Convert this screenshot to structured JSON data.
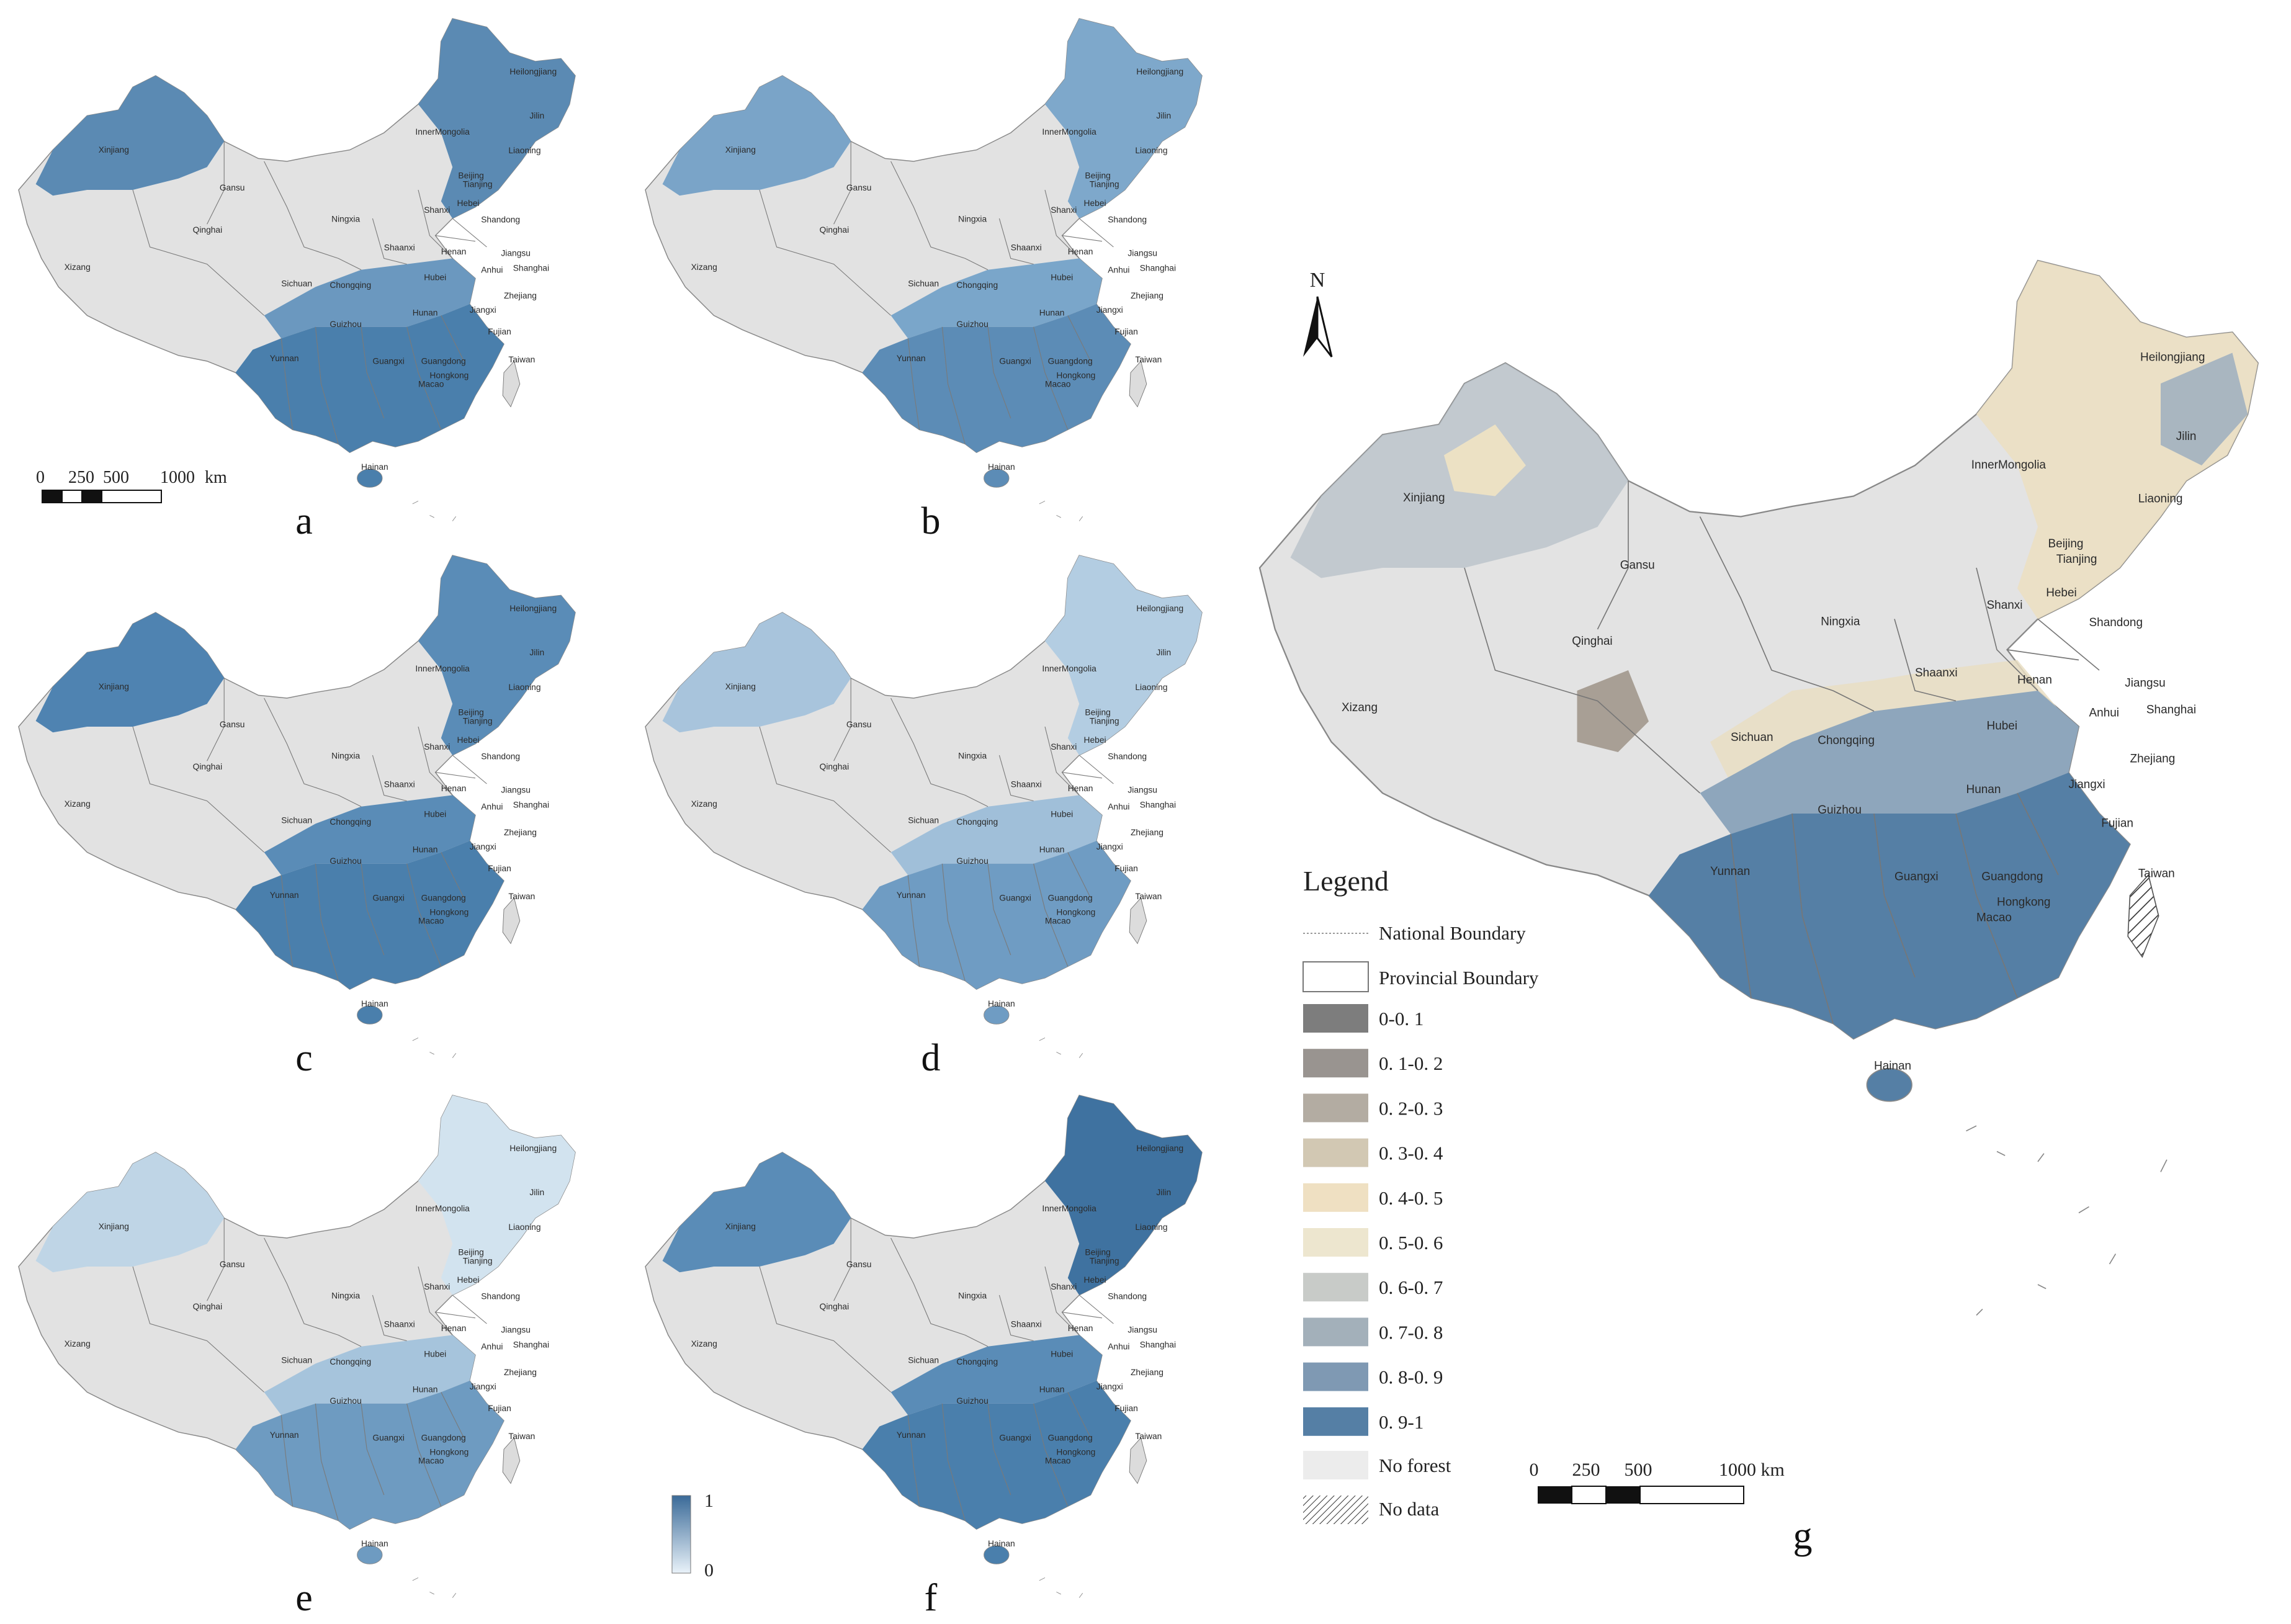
{
  "panels": [
    {
      "letter": "a",
      "shade": "#5b8ab3",
      "nw": "#5b8ab3",
      "ne": "#5b8ab3",
      "south": "#4a7fac",
      "center": "#6b98bf"
    },
    {
      "letter": "b",
      "shade": "#6e9cc3",
      "nw": "#7aa4c8",
      "ne": "#7ea8cb",
      "south": "#5c8cb6",
      "center": "#7aa6ca"
    },
    {
      "letter": "c",
      "shade": "#4f83b1",
      "nw": "#4f83b1",
      "ne": "#5a8cb7",
      "south": "#4a7fac",
      "center": "#5a8cb7"
    },
    {
      "letter": "d",
      "shade": "#94b6d3",
      "nw": "#a8c4dc",
      "ne": "#b3cde2",
      "south": "#6f9cc3",
      "center": "#a0bfd9"
    },
    {
      "letter": "e",
      "shade": "#b8d0e3",
      "nw": "#bfd5e6",
      "ne": "#d2e3ef",
      "south": "#6e9bc1",
      "center": "#a6c4dc"
    },
    {
      "letter": "f",
      "shade": "#4f83b1",
      "nw": "#5a8cb7",
      "ne": "#3f72a0",
      "south": "#4a7fac",
      "center": "#5a8cb7"
    }
  ],
  "province_labels_small": [
    "Heilongjiang",
    "Jilin",
    "Liaoning",
    "InnerMongolia",
    "Xinjiang",
    "Gansu",
    "Beijing",
    "Tianjing",
    "Hebei",
    "Shanxi",
    "Shandong",
    "Ningxia",
    "Qinghai",
    "Shaanxi",
    "Henan",
    "Jiangsu",
    "Anhui",
    "Shanghai",
    "Xizang",
    "Sichuan",
    "Chongqing",
    "Hubei",
    "Zhejiang",
    "Hunan",
    "Jiangxi",
    "Guizhou",
    "Fujian",
    "Yunnan",
    "Guangxi",
    "Guangdong",
    "Hongkong",
    "Macao",
    "Taiwan",
    "Hainan"
  ],
  "scalebar_small": {
    "ticks": [
      "0",
      "250",
      "500",
      "1000"
    ],
    "unit": "km"
  },
  "colorbar": {
    "max_label": "1",
    "min_label": "0",
    "top_color": "#3a6a98",
    "bottom_color": "#e9f2f9"
  },
  "main_map": {
    "letter": "g",
    "north": "N",
    "labels": {
      "Heilongjiang": "Heilongjiang",
      "Jilin": "Jilin",
      "Liaoning": "Liaoning",
      "InnerMongolia": "InnerMongolia",
      "Xinjiang": "Xinjiang",
      "Gansu": "Gansu",
      "Beijing": "Beijing",
      "Tianjing": "Tianjing",
      "Hebei": "Hebei",
      "Shanxi": "Shanxi",
      "Shandong": "Shandong",
      "Ningxia": "Ningxia",
      "Qinghai": "Qinghai",
      "Shaanxi": "Shaanxi",
      "Henan": "Henan",
      "Jiangsu": "Jiangsu",
      "Anhui": "Anhui",
      "Shanghai": "Shanghai",
      "Xizang": "Xizang",
      "Sichuan": "Sichuan",
      "Chongqing": "Chongqing",
      "Hubei": "Hubei",
      "Zhejiang": "Zhejiang",
      "Hunan": "Hunan",
      "Jiangxi": "Jiangxi",
      "Guizhou": "Guizhou",
      "Fujian": "Fujian",
      "Yunnan": "Yunnan",
      "Guangxi": "Guangxi",
      "Guangdong": "Guangdong",
      "Hongkong": "Hongkong",
      "Macao": "Macao",
      "Taiwan": "Taiwan",
      "Hainan": "Hainan"
    },
    "scalebar": {
      "ticks": [
        "0",
        "250",
        "500",
        "1000 km"
      ]
    }
  },
  "legend": {
    "title": "Legend",
    "boundaries": {
      "national": "National Boundary",
      "provincial": "Provincial Boundary"
    },
    "classes": [
      {
        "label": "0-0. 1",
        "color": "#7d7d7d"
      },
      {
        "label": "0. 1-0. 2",
        "color": "#999490"
      },
      {
        "label": "0. 2-0. 3",
        "color": "#b3aca2"
      },
      {
        "label": "0. 3-0. 4",
        "color": "#d2c8b3"
      },
      {
        "label": "0. 4-0. 5",
        "color": "#efe0c2"
      },
      {
        "label": "0. 5-0. 6",
        "color": "#ede6cf"
      },
      {
        "label": "0. 6-0. 7",
        "color": "#c8cbc8"
      },
      {
        "label": "0. 7-0. 8",
        "color": "#a3b0ba"
      },
      {
        "label": "0. 8-0. 9",
        "color": "#7f99b3"
      },
      {
        "label": "0. 9-1",
        "color": "#557fa5"
      }
    ],
    "no_forest": "No forest",
    "no_data": "No data"
  }
}
